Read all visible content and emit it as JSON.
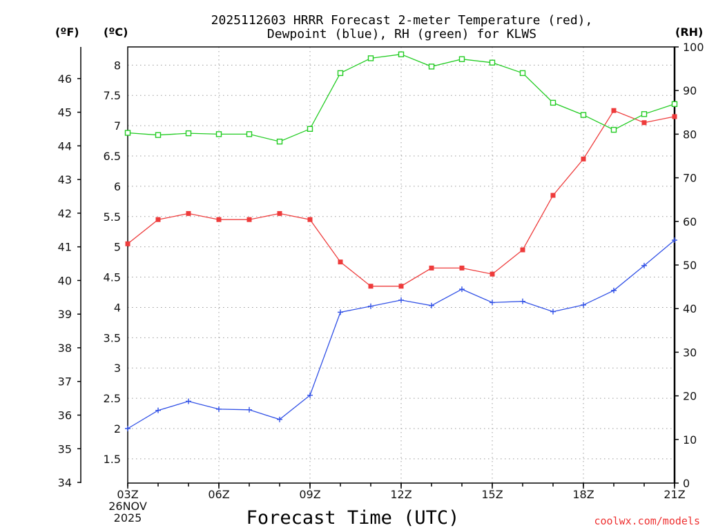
{
  "chart_data": {
    "type": "line",
    "title": "2025112603 HRRR Forecast 2-meter Temperature (red),",
    "subtitle": "Dewpoint (blue), RH (green) for KLWS",
    "xlabel": "Forecast Time (UTC)",
    "units": {
      "fahrenheit": "(ºF)",
      "celsius": "(ºC)",
      "rh": "(RH)"
    },
    "date_label": [
      "26NOV",
      "2025"
    ],
    "credit": "coolwx.com/models",
    "x": [
      "03Z",
      "04Z",
      "05Z",
      "06Z",
      "07Z",
      "08Z",
      "09Z",
      "10Z",
      "11Z",
      "12Z",
      "13Z",
      "14Z",
      "15Z",
      "16Z",
      "17Z",
      "18Z",
      "19Z",
      "20Z",
      "21Z"
    ],
    "x_ticks": [
      "03Z",
      "06Z",
      "09Z",
      "12Z",
      "15Z",
      "18Z",
      "21Z"
    ],
    "xlim": [
      0,
      18
    ],
    "celsius_axis": {
      "ylim": [
        1.1,
        8.3
      ],
      "ticks": [
        "1.5",
        "2",
        "2.5",
        "3",
        "3.5",
        "4",
        "4.5",
        "5",
        "5.5",
        "6",
        "6.5",
        "7",
        "7.5",
        "8"
      ]
    },
    "fahrenheit_axis": {
      "ylim": [
        33.98,
        46.94
      ],
      "ticks": [
        "34",
        "35",
        "36",
        "37",
        "38",
        "39",
        "40",
        "41",
        "42",
        "43",
        "44",
        "45",
        "46"
      ]
    },
    "rh_axis": {
      "ylim": [
        0,
        100
      ],
      "ticks": [
        "0",
        "10",
        "20",
        "30",
        "40",
        "50",
        "60",
        "70",
        "80",
        "90",
        "100"
      ]
    },
    "series": [
      {
        "name": "Temperature",
        "axis": "celsius",
        "color": "#ee3b3b",
        "marker": "filled-square",
        "values": [
          5.05,
          5.45,
          5.55,
          5.45,
          5.45,
          5.55,
          5.45,
          4.75,
          4.35,
          4.35,
          4.65,
          4.65,
          4.55,
          4.95,
          5.85,
          6.45,
          7.25,
          7.05,
          7.15
        ]
      },
      {
        "name": "Dewpoint",
        "axis": "celsius",
        "color": "#3050e6",
        "marker": "plus",
        "values": [
          2.0,
          2.3,
          2.45,
          2.32,
          2.31,
          2.15,
          2.55,
          3.92,
          4.02,
          4.12,
          4.03,
          4.3,
          4.08,
          4.1,
          3.93,
          4.04,
          4.28,
          4.69,
          5.11
        ]
      },
      {
        "name": "RH",
        "axis": "rh",
        "color": "#22cc22",
        "marker": "open-square",
        "values": [
          80.3,
          79.8,
          80.2,
          80.0,
          80.0,
          78.3,
          81.2,
          94.0,
          97.4,
          98.3,
          95.5,
          97.2,
          96.4,
          94.0,
          87.2,
          84.4,
          81.0,
          84.6,
          86.9
        ]
      }
    ]
  }
}
